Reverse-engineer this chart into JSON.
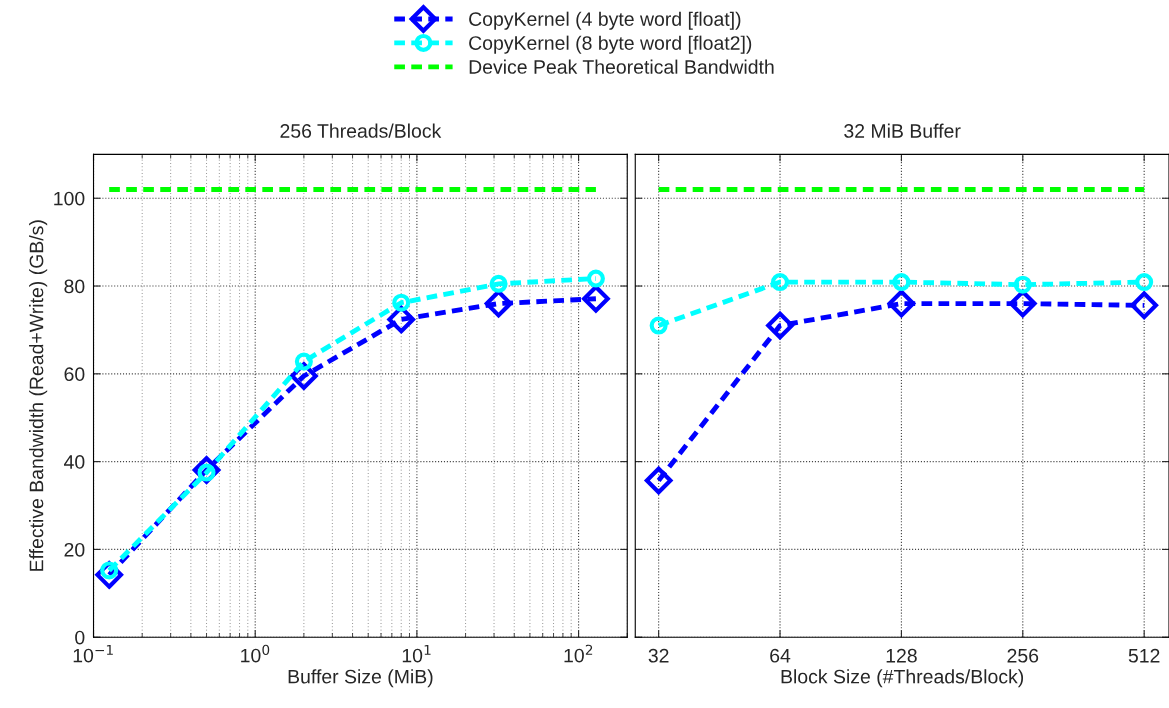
{
  "chart_data": [
    {
      "type": "line",
      "title": "256 Threads/Block",
      "xlabel": "Buffer Size (MiB)",
      "ylabel": "Effective Bandwidth (Read+Write) (GB/s)",
      "log": "x",
      "x": [
        0.125,
        0.5,
        2,
        8,
        32,
        128
      ],
      "xlim": [
        0.1,
        200
      ],
      "xticks": [
        {
          "value": 0.1,
          "label": "10$^{−1}$"
        },
        {
          "value": 1,
          "label": "10$^{0}$"
        },
        {
          "value": 10,
          "label": "10$^{1}$"
        },
        {
          "value": 100,
          "label": "10$^{2}$"
        }
      ],
      "ylim": [
        0,
        110
      ],
      "yticks": [
        0,
        20,
        40,
        60,
        80,
        100
      ],
      "grid": true,
      "line_style": "dashed",
      "legend": "top",
      "series": [
        {
          "name": "CopyKernel (4 byte word [float])",
          "color": "#0000ff",
          "marker": "diamond",
          "values": [
            14.2,
            38.1,
            59.5,
            72.4,
            76.0,
            77.1
          ]
        },
        {
          "name": "CopyKernel (8 byte word [float2])",
          "color": "#00ffff",
          "marker": "circle",
          "values": [
            15.2,
            37.5,
            62.8,
            76.2,
            80.5,
            81.7
          ]
        },
        {
          "name": "Device Peak Theoretical Bandwidth",
          "color": "#00ff00",
          "marker": "none",
          "x": [
            0.125,
            128
          ],
          "values": [
            102,
            102
          ]
        }
      ]
    },
    {
      "type": "line",
      "title": "32 MiB Buffer",
      "xlabel": "Block Size (#Threads/Block)",
      "log": "x",
      "x": [
        32,
        64,
        128,
        256,
        512
      ],
      "xlim": [
        28,
        590
      ],
      "xticks": [
        32,
        64,
        128,
        256,
        512
      ],
      "ylim": [
        0,
        110
      ],
      "yticks": [
        0,
        20,
        40,
        60,
        80,
        100
      ],
      "grid": true,
      "line_style": "dashed",
      "tick_labels": "x",
      "series": [
        {
          "color": "#0000ff",
          "marker": "diamond",
          "values": [
            35.7,
            71.0,
            76.0,
            76.0,
            75.6
          ]
        },
        {
          "color": "#00ffff",
          "marker": "circle",
          "values": [
            71.0,
            80.9,
            80.9,
            80.3,
            80.9
          ]
        },
        {
          "color": "#00ff00",
          "marker": "none",
          "x": [
            32,
            512
          ],
          "values": [
            102,
            102
          ]
        }
      ]
    }
  ]
}
